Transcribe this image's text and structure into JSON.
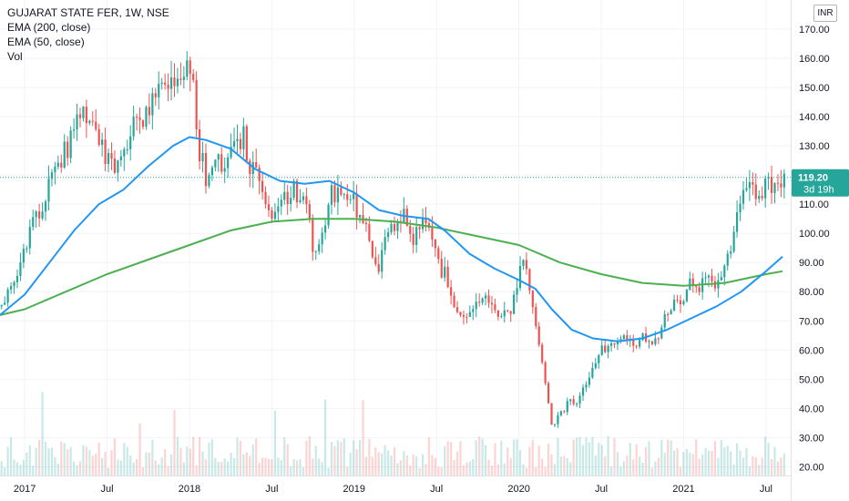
{
  "legend": {
    "title": "GUJARAT STATE FER, 1W, NSE",
    "ema200": "EMA (200, close)",
    "ema50": "EMA (50, close)",
    "vol": "Vol"
  },
  "currency_button": "INR",
  "colors": {
    "up": "#26a69a",
    "down": "#ef5350",
    "ema200": "#4caf50",
    "ema50": "#2196f3",
    "last_price_bg": "#26a69a",
    "grid": "#f0f3fa",
    "axis_text": "#131722"
  },
  "price_label": {
    "value": "119.20",
    "countdown": "3d 19h"
  },
  "chart_data": {
    "type": "candlestick",
    "title": "GUJARAT STATE FER, 1W, NSE",
    "ylim": [
      17,
      180
    ],
    "y_ticks": [
      "20.00",
      "30.00",
      "40.00",
      "50.00",
      "60.00",
      "70.00",
      "80.00",
      "90.00",
      "100.00",
      "110.00",
      "120.00",
      "130.00",
      "140.00",
      "150.00",
      "160.00",
      "170.00"
    ],
    "x_ticks": [
      {
        "label": "2017",
        "t": 2017.0
      },
      {
        "label": "Jul",
        "t": 2017.5
      },
      {
        "label": "2018",
        "t": 2018.0
      },
      {
        "label": "Jul",
        "t": 2018.5
      },
      {
        "label": "2019",
        "t": 2019.0
      },
      {
        "label": "Jul",
        "t": 2019.5
      },
      {
        "label": "2020",
        "t": 2020.0
      },
      {
        "label": "Jul",
        "t": 2020.5
      },
      {
        "label": "2021",
        "t": 2021.0
      },
      {
        "label": "Jul",
        "t": 2021.5
      }
    ],
    "xlim": [
      2016.85,
      2021.65
    ],
    "last_price": 119.2,
    "price_path": [
      [
        2016.85,
        75
      ],
      [
        2016.92,
        82
      ],
      [
        2016.98,
        90
      ],
      [
        2017.05,
        104
      ],
      [
        2017.12,
        112
      ],
      [
        2017.2,
        122
      ],
      [
        2017.28,
        133
      ],
      [
        2017.35,
        140
      ],
      [
        2017.42,
        133
      ],
      [
        2017.5,
        126
      ],
      [
        2017.55,
        122
      ],
      [
        2017.6,
        128
      ],
      [
        2017.67,
        138
      ],
      [
        2017.73,
        140
      ],
      [
        2017.8,
        148
      ],
      [
        2017.87,
        155
      ],
      [
        2017.92,
        150
      ],
      [
        2017.97,
        157
      ],
      [
        2018.02,
        150
      ],
      [
        2018.05,
        132
      ],
      [
        2018.1,
        118
      ],
      [
        2018.15,
        125
      ],
      [
        2018.2,
        122
      ],
      [
        2018.25,
        126
      ],
      [
        2018.32,
        134
      ],
      [
        2018.38,
        122
      ],
      [
        2018.45,
        112
      ],
      [
        2018.5,
        106
      ],
      [
        2018.56,
        110
      ],
      [
        2018.62,
        116
      ],
      [
        2018.67,
        112
      ],
      [
        2018.72,
        105
      ],
      [
        2018.76,
        92
      ],
      [
        2018.8,
        98
      ],
      [
        2018.86,
        116
      ],
      [
        2018.92,
        110
      ],
      [
        2018.98,
        112
      ],
      [
        2019.05,
        106
      ],
      [
        2019.1,
        95
      ],
      [
        2019.15,
        89
      ],
      [
        2019.2,
        98
      ],
      [
        2019.25,
        104
      ],
      [
        2019.3,
        106
      ],
      [
        2019.36,
        98
      ],
      [
        2019.42,
        108
      ],
      [
        2019.47,
        98
      ],
      [
        2019.53,
        88
      ],
      [
        2019.58,
        82
      ],
      [
        2019.62,
        74
      ],
      [
        2019.67,
        73
      ],
      [
        2019.72,
        76
      ],
      [
        2019.78,
        80
      ],
      [
        2019.83,
        78
      ],
      [
        2019.88,
        72
      ],
      [
        2019.92,
        71
      ],
      [
        2019.96,
        76
      ],
      [
        2020.0,
        84
      ],
      [
        2020.03,
        92
      ],
      [
        2020.07,
        80
      ],
      [
        2020.12,
        64
      ],
      [
        2020.17,
        45
      ],
      [
        2020.2,
        33
      ],
      [
        2020.25,
        38
      ],
      [
        2020.3,
        42
      ],
      [
        2020.35,
        41
      ],
      [
        2020.4,
        47
      ],
      [
        2020.45,
        55
      ],
      [
        2020.5,
        60
      ],
      [
        2020.55,
        62
      ],
      [
        2020.6,
        64
      ],
      [
        2020.65,
        65
      ],
      [
        2020.7,
        62
      ],
      [
        2020.75,
        66
      ],
      [
        2020.8,
        63
      ],
      [
        2020.85,
        66
      ],
      [
        2020.9,
        72
      ],
      [
        2020.95,
        76
      ],
      [
        2021.0,
        78
      ],
      [
        2021.05,
        84
      ],
      [
        2021.1,
        80
      ],
      [
        2021.15,
        89
      ],
      [
        2021.2,
        81
      ],
      [
        2021.25,
        90
      ],
      [
        2021.3,
        97
      ],
      [
        2021.35,
        114
      ],
      [
        2021.4,
        119
      ],
      [
        2021.45,
        112
      ],
      [
        2021.5,
        117
      ],
      [
        2021.55,
        114
      ],
      [
        2021.6,
        119
      ]
    ],
    "ema200": [
      [
        2016.85,
        72
      ],
      [
        2017.0,
        74
      ],
      [
        2017.25,
        80
      ],
      [
        2017.5,
        86
      ],
      [
        2017.75,
        91
      ],
      [
        2018.0,
        96
      ],
      [
        2018.25,
        101
      ],
      [
        2018.5,
        104
      ],
      [
        2018.75,
        105
      ],
      [
        2019.0,
        105
      ],
      [
        2019.25,
        104
      ],
      [
        2019.5,
        102
      ],
      [
        2019.75,
        99
      ],
      [
        2020.0,
        96
      ],
      [
        2020.25,
        90
      ],
      [
        2020.5,
        86
      ],
      [
        2020.75,
        83
      ],
      [
        2021.0,
        82
      ],
      [
        2021.25,
        83
      ],
      [
        2021.5,
        86
      ],
      [
        2021.6,
        87
      ]
    ],
    "ema50": [
      [
        2016.85,
        72
      ],
      [
        2017.0,
        79
      ],
      [
        2017.15,
        90
      ],
      [
        2017.3,
        101
      ],
      [
        2017.45,
        110
      ],
      [
        2017.6,
        115
      ],
      [
        2017.75,
        123
      ],
      [
        2017.9,
        130
      ],
      [
        2018.0,
        133
      ],
      [
        2018.1,
        132
      ],
      [
        2018.25,
        129
      ],
      [
        2018.4,
        122
      ],
      [
        2018.55,
        118
      ],
      [
        2018.7,
        117
      ],
      [
        2018.85,
        118
      ],
      [
        2019.0,
        114
      ],
      [
        2019.15,
        108
      ],
      [
        2019.3,
        106
      ],
      [
        2019.45,
        105
      ],
      [
        2019.55,
        101
      ],
      [
        2019.7,
        93
      ],
      [
        2019.85,
        88
      ],
      [
        2020.0,
        84
      ],
      [
        2020.1,
        81
      ],
      [
        2020.2,
        74
      ],
      [
        2020.32,
        67
      ],
      [
        2020.45,
        64
      ],
      [
        2020.6,
        63
      ],
      [
        2020.75,
        64
      ],
      [
        2020.9,
        67
      ],
      [
        2021.05,
        71
      ],
      [
        2021.2,
        75
      ],
      [
        2021.35,
        80
      ],
      [
        2021.5,
        87
      ],
      [
        2021.6,
        92
      ]
    ]
  }
}
